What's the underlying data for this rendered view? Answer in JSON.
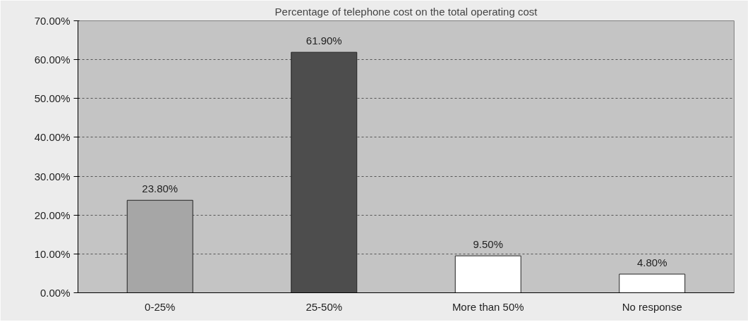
{
  "chart_data": {
    "type": "bar",
    "title": "Percentage of telephone cost on the total operating cost",
    "categories": [
      "0-25%",
      "25-50%",
      "More than 50%",
      "No response"
    ],
    "values": [
      23.8,
      61.9,
      9.5,
      4.8
    ],
    "colors": [
      "#a6a6a6",
      "#4d4d4d",
      "#ffffff",
      "#ffffff"
    ],
    "value_labels": [
      "23.80%",
      "61.90%",
      "9.50%",
      "4.80%"
    ],
    "ylim": [
      0,
      70
    ],
    "yticks": [
      {
        "value": 0,
        "label": "0.00%"
      },
      {
        "value": 10,
        "label": "10.00%"
      },
      {
        "value": 20,
        "label": "20.00%"
      },
      {
        "value": 30,
        "label": "30.00%"
      },
      {
        "value": 40,
        "label": "40.00%"
      },
      {
        "value": 50,
        "label": "50.00%"
      },
      {
        "value": 60,
        "label": "60.00%"
      },
      {
        "value": 70,
        "label": "70.00%"
      }
    ],
    "grid": "y"
  }
}
